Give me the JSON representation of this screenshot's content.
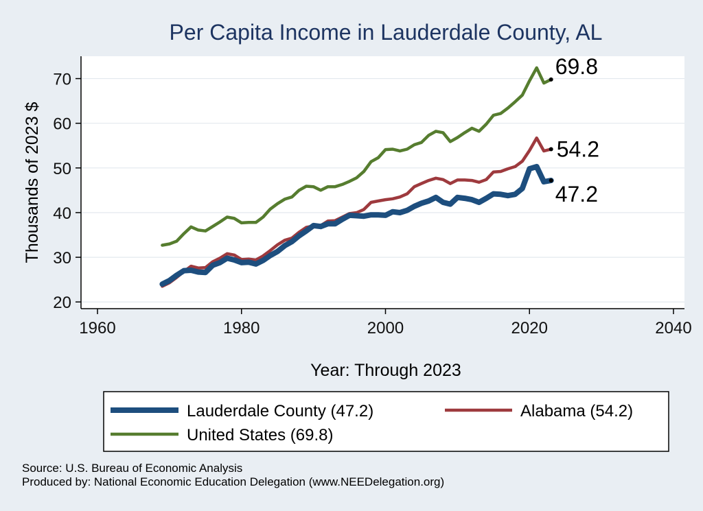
{
  "chart_data": {
    "type": "line",
    "title": "Per Capita Income in Lauderdale County, AL",
    "xlabel": "Year: Through 2023",
    "ylabel": "Thousands of 2023 $",
    "xlim": [
      1960,
      2040
    ],
    "ylim": [
      18.5,
      75
    ],
    "xticks": [
      1960,
      1980,
      2000,
      2020,
      2040
    ],
    "yticks": [
      20,
      30,
      40,
      50,
      60,
      70
    ],
    "grid": "horizontal",
    "legend_position": "bottom",
    "series": [
      {
        "name": "Lauderdale County (47.2)",
        "color": "#1d4e7e",
        "width": "thick",
        "end_label": "47.2",
        "x": [
          1969,
          1970,
          1971,
          1972,
          1973,
          1974,
          1975,
          1976,
          1977,
          1978,
          1979,
          1980,
          1981,
          1982,
          1983,
          1984,
          1985,
          1986,
          1987,
          1988,
          1989,
          1990,
          1991,
          1992,
          1993,
          1994,
          1995,
          1996,
          1997,
          1998,
          1999,
          2000,
          2001,
          2002,
          2003,
          2004,
          2005,
          2006,
          2007,
          2008,
          2009,
          2010,
          2011,
          2012,
          2013,
          2014,
          2015,
          2016,
          2017,
          2018,
          2019,
          2020,
          2021,
          2022,
          2023
        ],
        "values": [
          24.0,
          24.8,
          26.0,
          27.0,
          27.1,
          26.7,
          26.6,
          28.2,
          28.8,
          29.8,
          29.4,
          28.8,
          28.9,
          28.5,
          29.3,
          30.4,
          31.3,
          32.6,
          33.5,
          34.8,
          35.9,
          37.1,
          36.9,
          37.5,
          37.5,
          38.5,
          39.4,
          39.3,
          39.2,
          39.5,
          39.5,
          39.4,
          40.2,
          40.0,
          40.5,
          41.4,
          42.1,
          42.6,
          43.4,
          42.3,
          41.9,
          43.4,
          43.2,
          42.9,
          42.3,
          43.2,
          44.2,
          44.1,
          43.8,
          44.1,
          45.4,
          49.8,
          50.3,
          46.9,
          47.2
        ]
      },
      {
        "name": "Alabama (54.2)",
        "color": "#9e3a3e",
        "width": "medium",
        "end_label": "54.2",
        "x": [
          1969,
          1970,
          1971,
          1972,
          1973,
          1974,
          1975,
          1976,
          1977,
          1978,
          1979,
          1980,
          1981,
          1982,
          1983,
          1984,
          1985,
          1986,
          1987,
          1988,
          1989,
          1990,
          1991,
          1992,
          1993,
          1994,
          1995,
          1996,
          1997,
          1998,
          1999,
          2000,
          2001,
          2002,
          2003,
          2004,
          2005,
          2006,
          2007,
          2008,
          2009,
          2010,
          2011,
          2012,
          2013,
          2014,
          2015,
          2016,
          2017,
          2018,
          2019,
          2020,
          2021,
          2022,
          2023
        ],
        "values": [
          23.5,
          24.3,
          25.5,
          26.8,
          28.0,
          27.6,
          27.7,
          29.0,
          29.8,
          30.8,
          30.5,
          29.5,
          29.6,
          29.4,
          30.3,
          31.5,
          32.8,
          33.8,
          34.3,
          35.6,
          36.7,
          37.0,
          37.1,
          38.1,
          38.2,
          39.0,
          39.8,
          40.0,
          40.7,
          42.3,
          42.6,
          42.9,
          43.1,
          43.5,
          44.2,
          45.8,
          46.5,
          47.2,
          47.7,
          47.4,
          46.5,
          47.3,
          47.3,
          47.2,
          46.8,
          47.4,
          49.1,
          49.2,
          49.8,
          50.3,
          51.5,
          53.9,
          56.7,
          53.8,
          54.2
        ]
      },
      {
        "name": "United States (69.8)",
        "color": "#567d2f",
        "width": "medium",
        "end_label": "69.8",
        "x": [
          1969,
          1970,
          1971,
          1972,
          1973,
          1974,
          1975,
          1976,
          1977,
          1978,
          1979,
          1980,
          1981,
          1982,
          1983,
          1984,
          1985,
          1986,
          1987,
          1988,
          1989,
          1990,
          1991,
          1992,
          1993,
          1994,
          1995,
          1996,
          1997,
          1998,
          1999,
          2000,
          2001,
          2002,
          2003,
          2004,
          2005,
          2006,
          2007,
          2008,
          2009,
          2010,
          2011,
          2012,
          2013,
          2014,
          2015,
          2016,
          2017,
          2018,
          2019,
          2020,
          2021,
          2022,
          2023
        ],
        "values": [
          32.7,
          33.0,
          33.6,
          35.3,
          36.8,
          36.1,
          35.9,
          36.9,
          37.9,
          39.0,
          38.7,
          37.7,
          37.8,
          37.8,
          39.0,
          40.8,
          42.0,
          43.0,
          43.5,
          45.0,
          45.9,
          45.8,
          45.0,
          45.8,
          45.8,
          46.3,
          47.0,
          47.8,
          49.2,
          51.4,
          52.3,
          54.1,
          54.2,
          53.8,
          54.2,
          55.2,
          55.7,
          57.3,
          58.2,
          57.9,
          55.9,
          56.8,
          57.9,
          58.9,
          58.2,
          59.8,
          61.8,
          62.2,
          63.4,
          64.8,
          66.3,
          69.5,
          72.4,
          69.0,
          69.8
        ]
      }
    ]
  },
  "footer": {
    "source": "Source: U.S. Bureau of Economic Analysis",
    "produced_by": "Produced by: National Economic Education Delegation (www.NEEDelegation.org)"
  }
}
